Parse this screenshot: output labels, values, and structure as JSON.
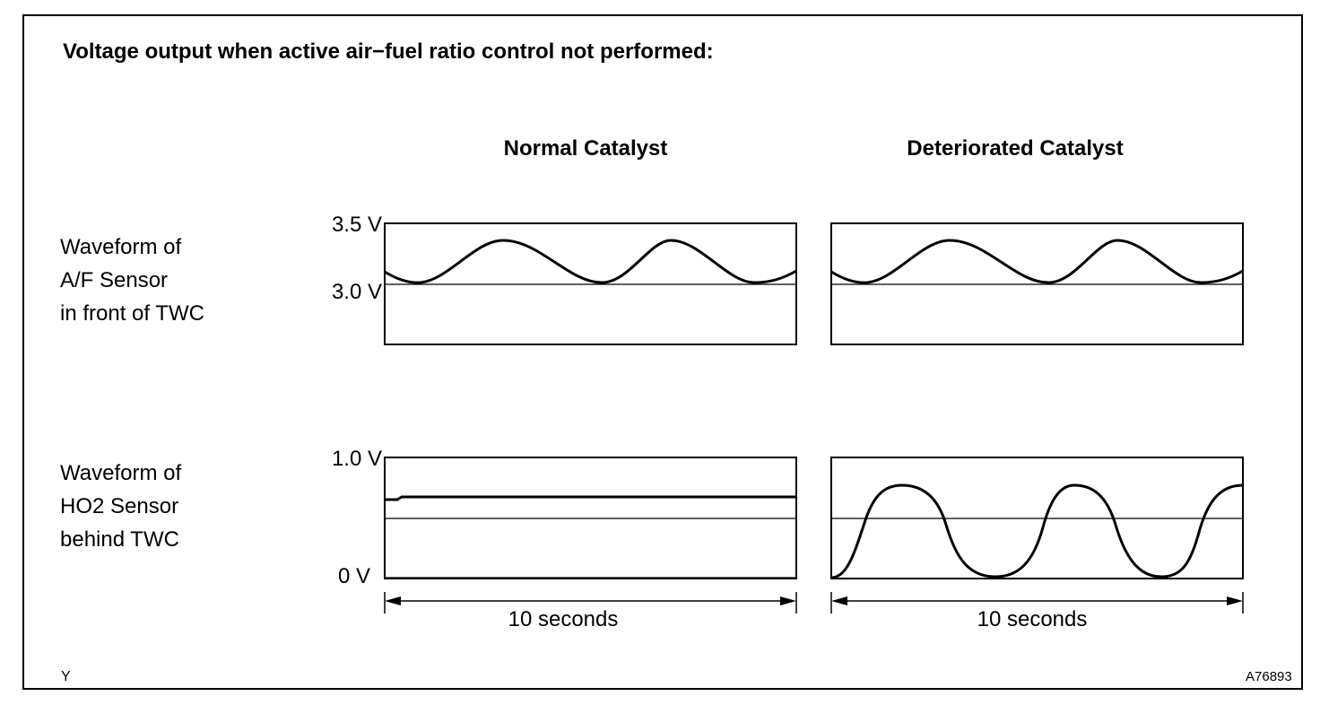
{
  "title": "Voltage output when active air−fuel ratio control not performed:",
  "columns": {
    "normal": "Normal Catalyst",
    "deteriorated": "Deteriorated Catalyst"
  },
  "rows": {
    "af_sensor": {
      "label_lines": [
        "Waveform of",
        "A/F Sensor",
        "in front of TWC"
      ],
      "voltage_top": "3.5 V",
      "voltage_mid": "3.0 V"
    },
    "ho2_sensor": {
      "label_lines": [
        "Waveform of",
        "HO2 Sensor",
        "behind TWC"
      ],
      "voltage_top": "1.0 V",
      "voltage_bottom": "0 V"
    }
  },
  "time_span": {
    "normal_label": "10 seconds",
    "deteriorated_label": "10 seconds"
  },
  "footer": {
    "left_code": "Y",
    "figure_id": "A76893"
  },
  "line_color": "#000000"
}
